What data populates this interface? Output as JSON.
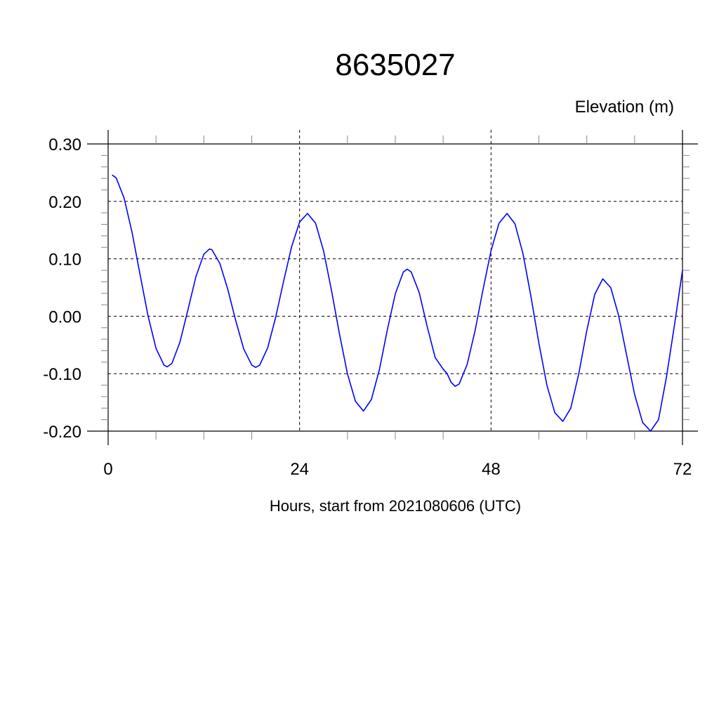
{
  "chart_data": {
    "type": "line",
    "title": "8635027",
    "ylabel": "Elevation (m)",
    "xlabel": "Hours, start from 2021080606 (UTC)",
    "xlim": [
      0,
      72
    ],
    "ylim": [
      -0.2,
      0.3
    ],
    "xticks": [
      0,
      24,
      48,
      72
    ],
    "xtick_labels": [
      "0",
      "24",
      "48",
      "72"
    ],
    "yticks": [
      -0.2,
      -0.1,
      0.0,
      0.1,
      0.2,
      0.3
    ],
    "ytick_labels": [
      "-0.20",
      "-0.10",
      "0.00",
      "0.10",
      "0.20",
      "0.30"
    ],
    "grid": true,
    "line_color": "#0000ff",
    "series": [
      {
        "x": [
          0.5,
          1,
          2,
          3,
          4,
          5,
          6,
          7,
          7.4,
          8,
          9,
          10,
          11,
          12,
          12.7,
          13,
          14,
          15,
          16,
          17,
          18,
          18.5,
          19,
          20,
          21,
          22,
          23,
          24,
          25,
          26,
          27,
          28,
          29,
          30,
          31,
          32,
          33,
          34,
          35,
          36,
          37,
          37.5,
          38,
          39,
          40,
          41,
          42,
          42.5,
          43,
          43.5,
          44,
          45,
          46,
          47,
          48,
          49,
          50,
          51,
          52,
          53,
          54,
          55,
          56,
          57,
          58,
          59,
          60,
          61,
          62,
          63,
          64,
          65,
          66,
          67,
          68,
          69,
          70,
          71,
          72
        ],
        "y": [
          0.246,
          0.241,
          0.206,
          0.146,
          0.073,
          0.001,
          -0.056,
          -0.085,
          -0.088,
          -0.082,
          -0.045,
          0.011,
          0.069,
          0.108,
          0.117,
          0.116,
          0.092,
          0.047,
          -0.008,
          -0.057,
          -0.085,
          -0.089,
          -0.085,
          -0.055,
          -0.002,
          0.061,
          0.121,
          0.164,
          0.179,
          0.162,
          0.114,
          0.045,
          -0.031,
          -0.1,
          -0.148,
          -0.165,
          -0.145,
          -0.093,
          -0.024,
          0.039,
          0.077,
          0.082,
          0.077,
          0.041,
          -0.018,
          -0.072,
          -0.092,
          -0.1,
          -0.115,
          -0.122,
          -0.118,
          -0.084,
          -0.025,
          0.047,
          0.114,
          0.162,
          0.179,
          0.161,
          0.109,
          0.035,
          -0.047,
          -0.12,
          -0.168,
          -0.183,
          -0.16,
          -0.1,
          -0.025,
          0.038,
          0.065,
          0.05,
          0.001,
          -0.068,
          -0.136,
          -0.185,
          -0.2,
          -0.18,
          -0.105,
          -0.015,
          0.08
        ]
      }
    ]
  }
}
